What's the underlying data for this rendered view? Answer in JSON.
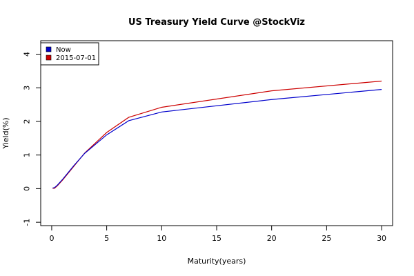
{
  "chart_data": {
    "type": "line",
    "title": "US Treasury Yield Curve @StockViz",
    "xlabel": "Maturity(years)",
    "ylabel": "Yield(%)",
    "xlim": [
      -1,
      31
    ],
    "ylim": [
      -1.1,
      4.4
    ],
    "xticks": [
      "0",
      "5",
      "10",
      "15",
      "20",
      "25",
      "30"
    ],
    "xtick_values": [
      0,
      5,
      10,
      15,
      20,
      25,
      30
    ],
    "yticks": [
      "-1",
      "0",
      "1",
      "2",
      "3",
      "4"
    ],
    "ytick_values": [
      -1,
      0,
      1,
      2,
      3,
      4
    ],
    "grid": false,
    "legend_position": "top-left",
    "series": [
      {
        "name": "Now",
        "color": "#0000cc",
        "x": [
          0.083,
          0.25,
          0.5,
          1,
          2,
          3,
          5,
          7,
          10,
          20,
          30
        ],
        "y": [
          0.02,
          0.03,
          0.1,
          0.28,
          0.68,
          1.05,
          1.6,
          2.02,
          2.28,
          2.65,
          2.95
        ]
      },
      {
        "name": "2015-07-01",
        "color": "#cc0000",
        "x": [
          0.083,
          0.25,
          0.5,
          1,
          2,
          3,
          5,
          7,
          10,
          20,
          30
        ],
        "y": [
          0.01,
          0.01,
          0.08,
          0.26,
          0.66,
          1.06,
          1.67,
          2.12,
          2.42,
          2.91,
          3.2
        ]
      }
    ]
  }
}
